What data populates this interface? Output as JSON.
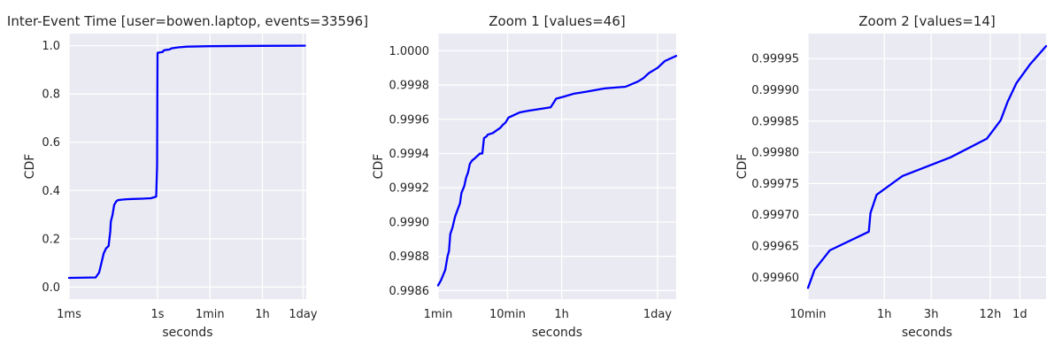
{
  "colors": {
    "plot_background": "#eaeaf2",
    "grid": "#ffffff",
    "line": "#0000ff",
    "text": "#262626"
  },
  "chart_data": [
    {
      "type": "line",
      "title": "Inter-Event Time [user=bowen.laptop, events=33596]",
      "xlabel": "seconds",
      "ylabel": "CDF",
      "x_scale": "log",
      "xlim": [
        0.001,
        110000
      ],
      "ylim": [
        -0.05,
        1.05
      ],
      "grid": true,
      "x_ticks": [
        {
          "value": 0.001,
          "label": "1ms"
        },
        {
          "value": 1,
          "label": "1s"
        },
        {
          "value": 60,
          "label": "1min"
        },
        {
          "value": 3600,
          "label": "1h"
        },
        {
          "value": 86400,
          "label": "1day"
        }
      ],
      "y_ticks": [
        {
          "value": 0.0,
          "label": "0.0"
        },
        {
          "value": 0.2,
          "label": "0.2"
        },
        {
          "value": 0.4,
          "label": "0.4"
        },
        {
          "value": 0.6,
          "label": "0.6"
        },
        {
          "value": 0.8,
          "label": "0.8"
        },
        {
          "value": 1.0,
          "label": "1.0"
        }
      ],
      "series": [
        {
          "x": [
            0.001,
            0.008,
            0.0105,
            0.0125,
            0.015,
            0.018,
            0.022,
            0.025,
            0.026,
            0.03,
            0.034,
            0.04,
            0.045,
            0.06,
            0.09,
            0.15,
            0.3,
            0.6,
            0.9,
            0.97,
            0.99,
            1.0,
            1.01,
            1.03,
            1.2,
            1.5,
            1.6,
            2.0,
            2.5,
            3.0,
            5.0,
            10.0,
            60.0,
            3600.0,
            100000.0
          ],
          "y": [
            0.038,
            0.04,
            0.06,
            0.1,
            0.14,
            0.16,
            0.17,
            0.23,
            0.27,
            0.3,
            0.34,
            0.355,
            0.36,
            0.362,
            0.364,
            0.365,
            0.366,
            0.368,
            0.375,
            0.5,
            0.8,
            0.96,
            0.97,
            0.971,
            0.972,
            0.974,
            0.98,
            0.983,
            0.984,
            0.989,
            0.993,
            0.996,
            0.998,
            0.9995,
            1.0
          ]
        }
      ]
    },
    {
      "type": "line",
      "title": "Zoom 1 [values=46]",
      "xlabel": "seconds",
      "ylabel": "CDF",
      "x_scale": "log",
      "xlim": [
        60,
        160000
      ],
      "ylim": [
        0.99855,
        1.0001
      ],
      "grid": true,
      "x_ticks": [
        {
          "value": 60,
          "label": "1min"
        },
        {
          "value": 600,
          "label": "10min"
        },
        {
          "value": 3600,
          "label": "1h"
        },
        {
          "value": 86400,
          "label": "1day"
        }
      ],
      "y_ticks": [
        {
          "value": 0.9986,
          "label": "0.9986"
        },
        {
          "value": 0.9988,
          "label": "0.9988"
        },
        {
          "value": 0.999,
          "label": "0.9990"
        },
        {
          "value": 0.9992,
          "label": "0.9992"
        },
        {
          "value": 0.9994,
          "label": "0.9994"
        },
        {
          "value": 0.9996,
          "label": "0.9996"
        },
        {
          "value": 0.9998,
          "label": "0.9998"
        },
        {
          "value": 1.0,
          "label": "1.0000"
        }
      ],
      "series": [
        {
          "x": [
            60,
            66,
            76,
            82,
            86,
            90,
            97,
            105,
            114,
            124,
            130,
            143,
            152,
            162,
            172,
            186,
            200,
            240,
            260,
            275,
            300,
            310,
            370,
            400,
            470,
            520,
            560,
            620,
            700,
            900,
            1200,
            2500,
            2800,
            3000,
            3700,
            5500,
            8000,
            15000,
            30000,
            45000,
            54000,
            65000,
            86400,
            110000,
            160000
          ],
          "y": [
            0.99863,
            0.99866,
            0.99872,
            0.9988,
            0.99883,
            0.99893,
            0.99897,
            0.99903,
            0.99907,
            0.99911,
            0.99917,
            0.99921,
            0.99926,
            0.99929,
            0.99934,
            0.99936,
            0.99937,
            0.9994,
            0.9994,
            0.99949,
            0.9995,
            0.99951,
            0.99952,
            0.99953,
            0.99955,
            0.99957,
            0.99958,
            0.99961,
            0.99962,
            0.99964,
            0.99965,
            0.99967,
            0.9997,
            0.99972,
            0.99973,
            0.99975,
            0.99976,
            0.99978,
            0.99979,
            0.99982,
            0.99984,
            0.99987,
            0.9999,
            0.99994,
            0.99997
          ]
        }
      ]
    },
    {
      "type": "line",
      "title": "Zoom 2 [values=14]",
      "xlabel": "seconds",
      "ylabel": "CDF",
      "x_scale": "log",
      "xlim": [
        600,
        160000
      ],
      "ylim": [
        0.999565,
        0.99999
      ],
      "grid": true,
      "x_ticks": [
        {
          "value": 600,
          "label": "10min"
        },
        {
          "value": 3600,
          "label": "1h"
        },
        {
          "value": 10800,
          "label": "3h"
        },
        {
          "value": 43200,
          "label": "12h"
        },
        {
          "value": 86400,
          "label": "1d"
        }
      ],
      "y_ticks": [
        {
          "value": 0.9996,
          "label": "0.99960"
        },
        {
          "value": 0.99965,
          "label": "0.99965"
        },
        {
          "value": 0.9997,
          "label": "0.99970"
        },
        {
          "value": 0.99975,
          "label": "0.99975"
        },
        {
          "value": 0.9998,
          "label": "0.99980"
        },
        {
          "value": 0.99985,
          "label": "0.99985"
        },
        {
          "value": 0.9999,
          "label": "0.99990"
        },
        {
          "value": 0.99995,
          "label": "0.99995"
        }
      ],
      "series": [
        {
          "x": [
            600,
            700,
            1000,
            2500,
            2600,
            3000,
            5500,
            17000,
            40000,
            55000,
            65000,
            80000,
            110000,
            160000
          ],
          "y": [
            0.999583,
            0.999612,
            0.999643,
            0.999673,
            0.999703,
            0.999732,
            0.999762,
            0.999792,
            0.999822,
            0.999851,
            0.999881,
            0.999911,
            0.999941,
            0.99997
          ]
        }
      ]
    }
  ]
}
